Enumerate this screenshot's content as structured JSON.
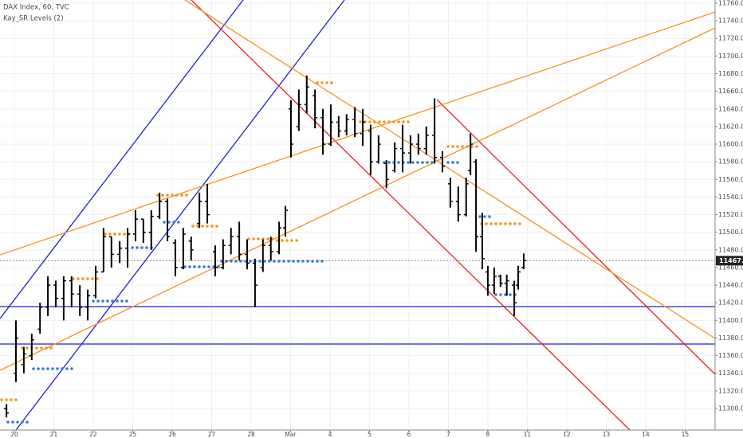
{
  "chart_data": {
    "type": "ohlc",
    "title": "DAX Index, 60, TVC",
    "indicator": "Kay_SR Levels (2)",
    "color": "#000000",
    "grid": true,
    "last_price": 11467.8,
    "xlim": [
      -0.364,
      17.76
    ],
    "ylim": [
      11275.6,
      11763.6
    ],
    "xticks": [
      {
        "value": 0,
        "label": "20"
      },
      {
        "value": 1,
        "label": "21"
      },
      {
        "value": 2,
        "label": "22"
      },
      {
        "value": 3,
        "label": "25"
      },
      {
        "value": 4,
        "label": "26"
      },
      {
        "value": 5,
        "label": "27"
      },
      {
        "value": 6,
        "label": "28"
      },
      {
        "value": 7,
        "label": "Mar"
      },
      {
        "value": 8,
        "label": "4"
      },
      {
        "value": 9,
        "label": "5"
      },
      {
        "value": 10,
        "label": "6"
      },
      {
        "value": 11,
        "label": "7"
      },
      {
        "value": 12,
        "label": "8"
      },
      {
        "value": 13,
        "label": "11"
      },
      {
        "value": 14,
        "label": "12"
      },
      {
        "value": 15,
        "label": "13"
      },
      {
        "value": 16,
        "label": "14"
      },
      {
        "value": 17,
        "label": "15"
      }
    ],
    "yticks": [
      {
        "value": 11300,
        "label": "11300.0"
      },
      {
        "value": 11320,
        "label": "11320.0"
      },
      {
        "value": 11340,
        "label": "11340.0"
      },
      {
        "value": 11360,
        "label": "11360.0"
      },
      {
        "value": 11380,
        "label": "11380.0"
      },
      {
        "value": 11400,
        "label": "11400.0"
      },
      {
        "value": 11420,
        "label": "11420.0"
      },
      {
        "value": 11440,
        "label": "11440.0"
      },
      {
        "value": 11460,
        "label": "11460.0"
      },
      {
        "value": 11480,
        "label": "11480.0"
      },
      {
        "value": 11500,
        "label": "11500.0"
      },
      {
        "value": 11520,
        "label": "11520.0"
      },
      {
        "value": 11540,
        "label": "11540.0"
      },
      {
        "value": 11560,
        "label": "11560.0"
      },
      {
        "value": 11580,
        "label": "11580.0"
      },
      {
        "value": 11600,
        "label": "11600.0"
      },
      {
        "value": 11620,
        "label": "11620.0"
      },
      {
        "value": 11640,
        "label": "11640.0"
      },
      {
        "value": 11660,
        "label": "11660.0"
      },
      {
        "value": 11680,
        "label": "11680.0"
      },
      {
        "value": 11700,
        "label": "11700.0"
      },
      {
        "value": 11720,
        "label": "11720.0"
      },
      {
        "value": 11740,
        "label": "11740.0"
      },
      {
        "value": 11760,
        "label": "11760.0"
      }
    ],
    "x": [
      -0.2,
      0.04,
      0.24,
      0.44,
      0.65,
      0.85,
      1.05,
      1.25,
      1.45,
      1.66,
      1.86,
      2.06,
      2.26,
      2.46,
      2.67,
      2.87,
      3.07,
      3.27,
      3.47,
      3.68,
      3.88,
      4.08,
      4.28,
      4.48,
      4.69,
      4.89,
      5.09,
      5.29,
      5.49,
      5.7,
      5.9,
      6.1,
      6.3,
      6.5,
      6.71,
      6.87,
      7.01,
      7.21,
      7.41,
      7.62,
      7.82,
      8.02,
      8.22,
      8.42,
      8.63,
      8.83,
      9.03,
      9.23,
      9.43,
      9.64,
      9.84,
      10.04,
      10.24,
      10.44,
      10.65,
      10.85,
      11.05,
      11.25,
      11.45,
      11.56,
      11.7,
      11.86,
      12.0,
      12.16,
      12.32,
      12.48,
      12.67,
      12.77,
      12.91
    ],
    "open": [
      11300,
      11340,
      11350,
      11360,
      11390,
      11415,
      11440,
      11425,
      11445,
      11430,
      11415,
      11428,
      11455,
      11495,
      11475,
      11482,
      11498,
      11515,
      11500,
      11518,
      11535,
      11488,
      11460,
      11490,
      11510,
      11535,
      11478,
      11460,
      11485,
      11495,
      11475,
      11465,
      11460,
      11485,
      11478,
      11505,
      11640,
      11620,
      11645,
      11655,
      11630,
      11600,
      11625,
      11615,
      11628,
      11612,
      11615,
      11580,
      11578,
      11570,
      11595,
      11590,
      11600,
      11595,
      11610,
      11585,
      11555,
      11535,
      11520,
      11570,
      11580,
      11495,
      11455,
      11440,
      11450,
      11442,
      11440,
      11440,
      11460
    ],
    "high": [
      11305,
      11400,
      11370,
      11385,
      11420,
      11450,
      11445,
      11450,
      11450,
      11440,
      11435,
      11462,
      11505,
      11495,
      11490,
      11505,
      11525,
      11515,
      11525,
      11545,
      11538,
      11492,
      11505,
      11495,
      11545,
      11555,
      11485,
      11492,
      11505,
      11512,
      11492,
      11470,
      11492,
      11495,
      11512,
      11530,
      11650,
      11662,
      11678,
      11662,
      11640,
      11645,
      11632,
      11634,
      11642,
      11640,
      11622,
      11610,
      11582,
      11602,
      11622,
      11610,
      11612,
      11620,
      11652,
      11592,
      11562,
      11552,
      11562,
      11612,
      11583,
      11522,
      11462,
      11460,
      11452,
      11452,
      11445,
      11462,
      11476
    ],
    "low": [
      11290,
      11330,
      11340,
      11355,
      11385,
      11405,
      11415,
      11400,
      11415,
      11405,
      11400,
      11425,
      11455,
      11460,
      11465,
      11460,
      11490,
      11488,
      11480,
      11515,
      11490,
      11450,
      11458,
      11468,
      11505,
      11510,
      11450,
      11458,
      11475,
      11468,
      11458,
      11415,
      11455,
      11468,
      11475,
      11495,
      11585,
      11615,
      11635,
      11618,
      11588,
      11598,
      11608,
      11610,
      11608,
      11598,
      11565,
      11578,
      11550,
      11568,
      11568,
      11578,
      11588,
      11588,
      11578,
      11568,
      11528,
      11512,
      11518,
      11565,
      11478,
      11458,
      11428,
      11430,
      11438,
      11428,
      11405,
      11435,
      11458
    ],
    "close": [
      11295,
      11380,
      11362,
      11378,
      11415,
      11440,
      11425,
      11445,
      11430,
      11415,
      11428,
      11455,
      11495,
      11475,
      11482,
      11498,
      11515,
      11500,
      11518,
      11535,
      11495,
      11460,
      11498,
      11480,
      11535,
      11520,
      11460,
      11485,
      11495,
      11475,
      11465,
      11440,
      11485,
      11478,
      11505,
      11525,
      11600,
      11645,
      11665,
      11630,
      11600,
      11625,
      11615,
      11628,
      11612,
      11625,
      11580,
      11600,
      11560,
      11595,
      11590,
      11600,
      11595,
      11610,
      11585,
      11575,
      11535,
      11520,
      11555,
      11600,
      11495,
      11470,
      11440,
      11450,
      11442,
      11445,
      11420,
      11455,
      11468
    ]
  }
}
